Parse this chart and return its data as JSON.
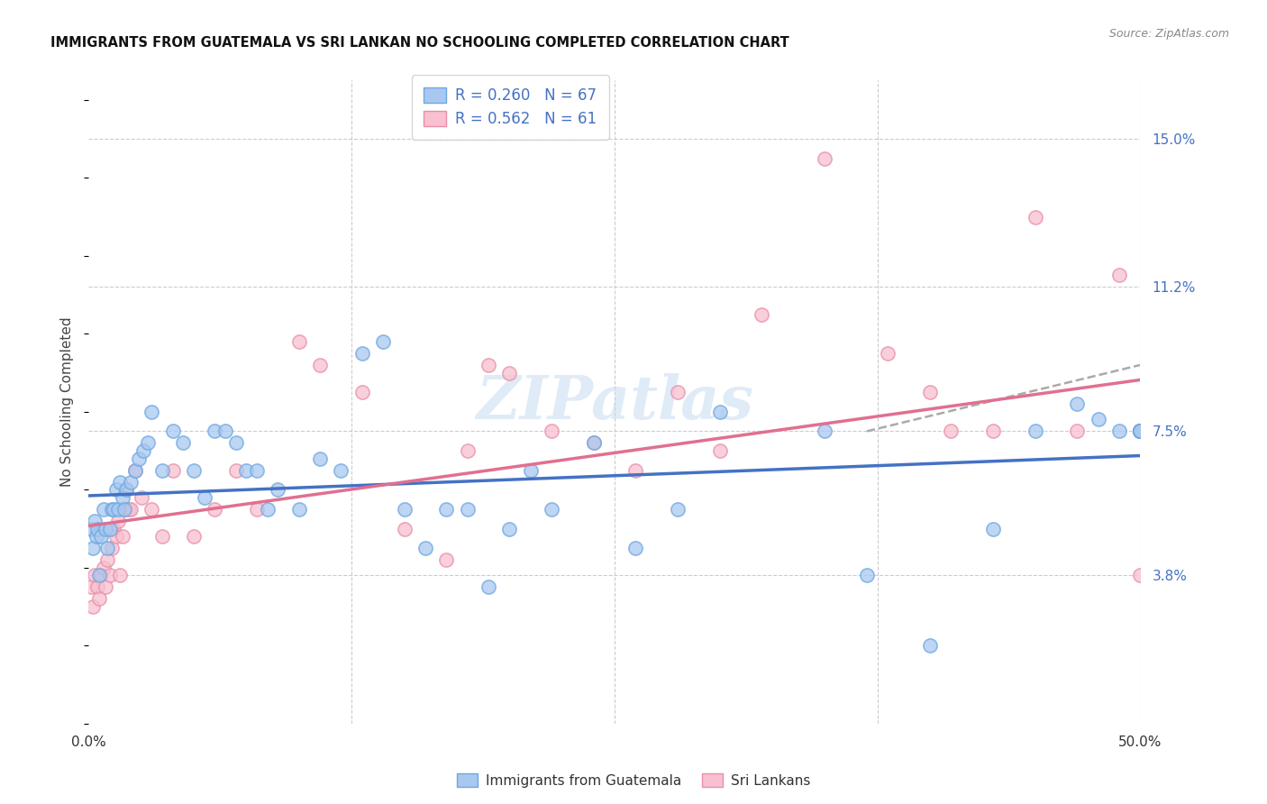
{
  "title": "IMMIGRANTS FROM GUATEMALA VS SRI LANKAN NO SCHOOLING COMPLETED CORRELATION CHART",
  "source": "Source: ZipAtlas.com",
  "ylabel": "No Schooling Completed",
  "x_min": 0.0,
  "x_max": 50.0,
  "y_min": 0.0,
  "y_max": 16.5,
  "x_ticks": [
    0.0,
    12.5,
    25.0,
    37.5,
    50.0
  ],
  "x_tick_labels": [
    "0.0%",
    "",
    "",
    "",
    "50.0%"
  ],
  "y_tick_labels_right": [
    "3.8%",
    "7.5%",
    "11.2%",
    "15.0%"
  ],
  "y_tick_vals_right": [
    3.8,
    7.5,
    11.2,
    15.0
  ],
  "color_blue_fill": "#A8C8F0",
  "color_blue_edge": "#6EA8E0",
  "color_pink_fill": "#F8C0D0",
  "color_pink_edge": "#E890A8",
  "color_blue_line": "#4472C4",
  "color_pink_line": "#E07090",
  "color_blue_text": "#4472C4",
  "legend_label1": "Immigrants from Guatemala",
  "legend_label2": "Sri Lankans",
  "legend_entry1": "R = 0.260   N = 67",
  "legend_entry2": "R = 0.562   N = 61",
  "background_color": "#FFFFFF",
  "watermark": "ZIPatlas",
  "watermark_color": "#C0D8F0",
  "blue_x": [
    0.1,
    0.2,
    0.3,
    0.35,
    0.4,
    0.5,
    0.6,
    0.7,
    0.8,
    0.9,
    1.0,
    1.1,
    1.2,
    1.3,
    1.4,
    1.5,
    1.6,
    1.7,
    1.8,
    2.0,
    2.2,
    2.4,
    2.6,
    2.8,
    3.0,
    3.5,
    4.0,
    4.5,
    5.0,
    5.5,
    6.0,
    6.5,
    7.0,
    7.5,
    8.0,
    8.5,
    9.0,
    10.0,
    11.0,
    12.0,
    13.0,
    14.0,
    15.0,
    16.0,
    17.0,
    18.0,
    19.0,
    20.0,
    21.0,
    22.0,
    24.0,
    26.0,
    28.0,
    30.0,
    35.0,
    37.0,
    40.0,
    43.0,
    45.0,
    47.0,
    48.0,
    49.0,
    50.0,
    50.0,
    50.0,
    50.0,
    50.0
  ],
  "blue_y": [
    5.0,
    4.5,
    5.2,
    4.8,
    5.0,
    3.8,
    4.8,
    5.5,
    5.0,
    4.5,
    5.0,
    5.5,
    5.5,
    6.0,
    5.5,
    6.2,
    5.8,
    5.5,
    6.0,
    6.2,
    6.5,
    6.8,
    7.0,
    7.2,
    8.0,
    6.5,
    7.5,
    7.2,
    6.5,
    5.8,
    7.5,
    7.5,
    7.2,
    6.5,
    6.5,
    5.5,
    6.0,
    5.5,
    6.8,
    6.5,
    9.5,
    9.8,
    5.5,
    4.5,
    5.5,
    5.5,
    3.5,
    5.0,
    6.5,
    5.5,
    7.2,
    4.5,
    5.5,
    8.0,
    7.5,
    3.8,
    2.0,
    5.0,
    7.5,
    8.2,
    7.8,
    7.5,
    7.5,
    7.5,
    7.5,
    7.5,
    7.5
  ],
  "pink_x": [
    0.1,
    0.2,
    0.3,
    0.4,
    0.5,
    0.6,
    0.7,
    0.8,
    0.9,
    1.0,
    1.1,
    1.2,
    1.3,
    1.4,
    1.5,
    1.6,
    1.7,
    1.8,
    1.9,
    2.0,
    2.2,
    2.5,
    3.0,
    3.5,
    4.0,
    5.0,
    6.0,
    7.0,
    8.0,
    10.0,
    11.0,
    13.0,
    15.0,
    17.0,
    18.0,
    19.0,
    20.0,
    22.0,
    24.0,
    26.0,
    28.0,
    30.0,
    32.0,
    35.0,
    38.0,
    40.0,
    41.0,
    43.0,
    45.0,
    47.0,
    49.0,
    50.0,
    50.0,
    50.0,
    50.0,
    50.0,
    50.0,
    50.0,
    50.0,
    50.0,
    50.0
  ],
  "pink_y": [
    3.5,
    3.0,
    3.8,
    3.5,
    3.2,
    3.8,
    4.0,
    3.5,
    4.2,
    3.8,
    4.5,
    5.0,
    4.8,
    5.2,
    3.8,
    4.8,
    5.5,
    6.0,
    5.5,
    5.5,
    6.5,
    5.8,
    5.5,
    4.8,
    6.5,
    4.8,
    5.5,
    6.5,
    5.5,
    9.8,
    9.2,
    8.5,
    5.0,
    4.2,
    7.0,
    9.2,
    9.0,
    7.5,
    7.2,
    6.5,
    8.5,
    7.0,
    10.5,
    14.5,
    9.5,
    8.5,
    7.5,
    7.5,
    13.0,
    7.5,
    11.5,
    7.5,
    7.5,
    7.5,
    7.5,
    7.5,
    7.5,
    7.5,
    7.5,
    7.5,
    3.8
  ],
  "gray_x_start": 37.0,
  "gray_x_end": 50.0,
  "gray_y_start": 7.5,
  "gray_y_end": 9.2
}
